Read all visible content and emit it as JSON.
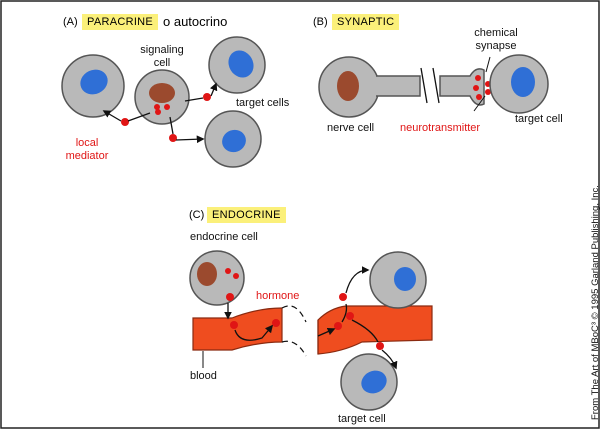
{
  "panels": {
    "A": {
      "letter": "(A)",
      "tag": "PARACRINE",
      "extra": "o autocrino",
      "signaling_cell": "signaling cell",
      "target_cells": "target cells",
      "mediator": "local mediator"
    },
    "B": {
      "letter": "(B)",
      "tag": "SYNAPTIC",
      "chemical_synapse": "chemical synapse",
      "nerve_cell": "nerve cell",
      "neurotransmitter": "neurotransmitter",
      "target_cell": "target cell"
    },
    "C": {
      "letter": "(C)",
      "tag": "ENDOCRINE",
      "endocrine_cell": "endocrine cell",
      "hormone": "hormone",
      "blood": "blood",
      "target_cell": "target cell"
    }
  },
  "credit": "From The Art of MBoC³ © 1995 Garland Publishing, Inc.",
  "colors": {
    "cell_fill": "#b9b9b9",
    "cell_stroke": "#555555",
    "nucleus_blue": "#2f6fd6",
    "nucleus_brown": "#9b4a2e",
    "molecule_red": "#e01515",
    "blood_vessel": "#ef4d1f",
    "tag_yellow": "#fbf07a"
  }
}
